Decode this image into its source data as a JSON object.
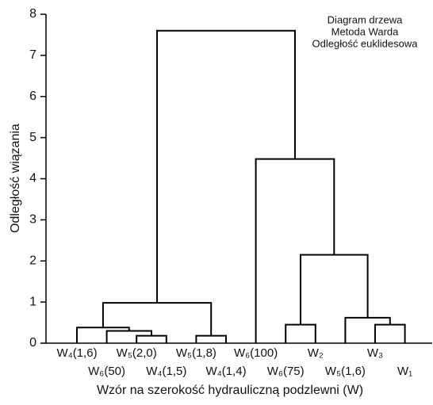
{
  "chart_data": {
    "type": "dendrogram",
    "annotation": [
      "Diagram drzewa",
      "Metoda Warda",
      "Odległość euklidesowa"
    ],
    "x_label": "Wzór na szerokość hydrauliczną podzlewni (W)",
    "y_label": "Odległość wiązania",
    "leaves": [
      "W₄(1,6)",
      "W₆(50)",
      "W₅(2,0)",
      "W₄(1,5)",
      "W₅(1,8)",
      "W₄(1,4)",
      "W₆(100)",
      "W₆(75)",
      "W₂",
      "W₅(1,6)",
      "W₃",
      "W₁"
    ],
    "linkage": [
      [
        2,
        3,
        0.18
      ],
      [
        4,
        5,
        0.18
      ],
      [
        1,
        12,
        0.3
      ],
      [
        0,
        14,
        0.38
      ],
      [
        7,
        8,
        0.45
      ],
      [
        10,
        11,
        0.45
      ],
      [
        9,
        17,
        0.62
      ],
      [
        15,
        13,
        0.98
      ],
      [
        16,
        18,
        2.15
      ],
      [
        6,
        20,
        4.48
      ],
      [
        19,
        21,
        7.6
      ]
    ],
    "color": "#000000",
    "ylim": [
      0,
      8
    ],
    "yticks": [
      0,
      1,
      2,
      3,
      4,
      5,
      6,
      7,
      8
    ]
  }
}
